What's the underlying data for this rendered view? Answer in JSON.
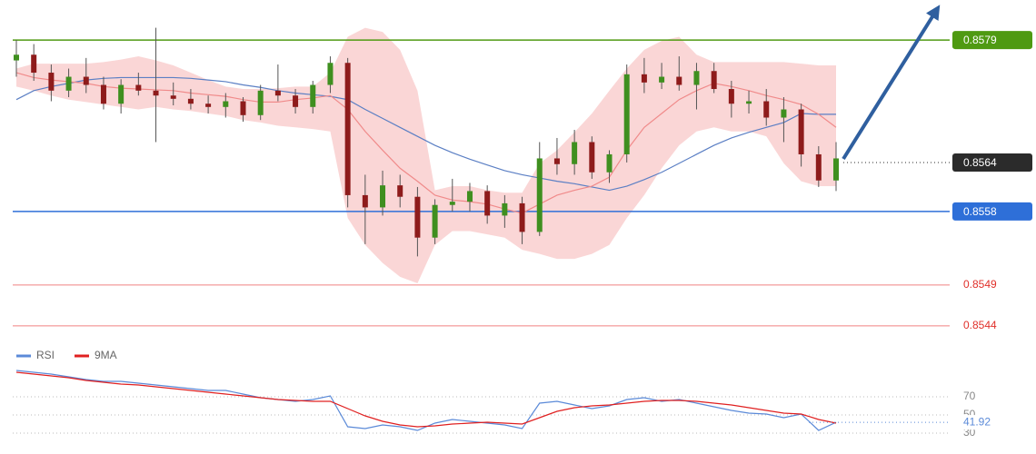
{
  "chart_data": [
    {
      "type": "candlestick",
      "ylim": [
        0.85422,
        0.85839
      ],
      "open": [
        0.85765,
        0.85772,
        0.8575,
        0.85728,
        0.85745,
        0.85735,
        0.85712,
        0.85735,
        0.85728,
        0.85722,
        0.85718,
        0.85712,
        0.85708,
        0.85715,
        0.85698,
        0.85728,
        0.85722,
        0.85708,
        0.85735,
        0.85762,
        0.856,
        0.85585,
        0.85612,
        0.85598,
        0.85548,
        0.85588,
        0.85592,
        0.85605,
        0.85575,
        0.8559,
        0.85555,
        0.85645,
        0.85638,
        0.85665,
        0.85628,
        0.8565,
        0.85748,
        0.85738,
        0.85745,
        0.85735,
        0.85752,
        0.8573,
        0.85712,
        0.85715,
        0.85695,
        0.85705,
        0.8565,
        0.85618
      ],
      "high": [
        0.8579,
        0.85785,
        0.8576,
        0.85755,
        0.85768,
        0.85745,
        0.85742,
        0.8575,
        0.85805,
        0.85738,
        0.8573,
        0.85722,
        0.85725,
        0.8572,
        0.85735,
        0.8576,
        0.8573,
        0.8574,
        0.8577,
        0.85768,
        0.85625,
        0.8563,
        0.85625,
        0.8561,
        0.85595,
        0.8562,
        0.85615,
        0.85612,
        0.856,
        0.85598,
        0.85665,
        0.8567,
        0.8568,
        0.85672,
        0.85655,
        0.8576,
        0.85768,
        0.85762,
        0.8577,
        0.85762,
        0.85762,
        0.8574,
        0.85728,
        0.8573,
        0.8572,
        0.85712,
        0.8566,
        0.85665
      ],
      "low": [
        0.85745,
        0.8574,
        0.85715,
        0.8572,
        0.85725,
        0.85705,
        0.857,
        0.85722,
        0.85665,
        0.8571,
        0.85705,
        0.857,
        0.85695,
        0.8569,
        0.85692,
        0.85715,
        0.857,
        0.857,
        0.85725,
        0.85585,
        0.8554,
        0.85575,
        0.85585,
        0.85525,
        0.8554,
        0.8558,
        0.8558,
        0.85565,
        0.8556,
        0.8554,
        0.8555,
        0.85625,
        0.85625,
        0.8562,
        0.85615,
        0.8564,
        0.85725,
        0.8573,
        0.85728,
        0.85705,
        0.85725,
        0.85695,
        0.857,
        0.85685,
        0.85665,
        0.85635,
        0.8561,
        0.85605
      ],
      "close": [
        0.85772,
        0.8575,
        0.85728,
        0.85745,
        0.85735,
        0.85712,
        0.85735,
        0.85728,
        0.85722,
        0.85718,
        0.85712,
        0.85708,
        0.85715,
        0.85698,
        0.85728,
        0.85722,
        0.85708,
        0.85735,
        0.85762,
        0.856,
        0.85585,
        0.85612,
        0.85598,
        0.85548,
        0.85588,
        0.85592,
        0.85605,
        0.85575,
        0.8559,
        0.85555,
        0.85645,
        0.85638,
        0.85665,
        0.85628,
        0.8565,
        0.85748,
        0.85738,
        0.85745,
        0.85735,
        0.85752,
        0.8573,
        0.85712,
        0.85715,
        0.85695,
        0.85705,
        0.8565,
        0.85618,
        0.85645
      ],
      "up_color": "#3f8f1f",
      "down_color": "#8e1b1b",
      "bands": {
        "color": "#f5b5b5",
        "upper": [
          0.85755,
          0.85761,
          0.85761,
          0.85761,
          0.85761,
          0.85763,
          0.85766,
          0.8577,
          0.85765,
          0.85759,
          0.8575,
          0.85741,
          0.85733,
          0.8573,
          0.8573,
          0.85731,
          0.85733,
          0.85733,
          0.8575,
          0.85794,
          0.85805,
          0.858,
          0.85778,
          0.85728,
          0.85606,
          0.85611,
          0.85611,
          0.85606,
          0.85603,
          0.85603,
          0.85639,
          0.85655,
          0.85677,
          0.857,
          0.85728,
          0.85755,
          0.85778,
          0.85789,
          0.85794,
          0.85772,
          0.85763,
          0.85763,
          0.85763,
          0.85763,
          0.85763,
          0.85761,
          0.85759,
          0.85759
        ],
        "lower": [
          0.85733,
          0.85728,
          0.85722,
          0.85717,
          0.85714,
          0.85711,
          0.85708,
          0.85705,
          0.85708,
          0.85705,
          0.85703,
          0.857,
          0.85697,
          0.85692,
          0.85689,
          0.85685,
          0.85683,
          0.85681,
          0.85678,
          0.85572,
          0.85539,
          0.85517,
          0.855,
          0.85492,
          0.85539,
          0.85556,
          0.85556,
          0.85552,
          0.85548,
          0.85533,
          0.85528,
          0.85522,
          0.85522,
          0.85528,
          0.85539,
          0.85572,
          0.856,
          0.85633,
          0.85661,
          0.85678,
          0.85683,
          0.85678,
          0.85678,
          0.85672,
          0.85639,
          0.85617,
          0.85611,
          0.85611
        ]
      },
      "moving_averages": [
        {
          "color": "#5b7fc4",
          "values": [
            0.85717,
            0.85728,
            0.85733,
            0.85737,
            0.85741,
            0.85743,
            0.85744,
            0.85744,
            0.85744,
            0.85744,
            0.85743,
            0.85741,
            0.85739,
            0.85735,
            0.85732,
            0.85728,
            0.85725,
            0.85723,
            0.85721,
            0.85717,
            0.85705,
            0.85694,
            0.85683,
            0.85672,
            0.85661,
            0.85652,
            0.85644,
            0.85637,
            0.8563,
            0.85625,
            0.85621,
            0.85617,
            0.85614,
            0.8561,
            0.85606,
            0.85611,
            0.85619,
            0.85628,
            0.85639,
            0.8565,
            0.85661,
            0.8567,
            0.85677,
            0.85683,
            0.85689,
            0.857,
            0.85699,
            0.85699
          ]
        },
        {
          "color": "#f08a8a",
          "values": [
            0.8575,
            0.85744,
            0.85741,
            0.85739,
            0.85737,
            0.85733,
            0.85731,
            0.8573,
            0.85729,
            0.85728,
            0.85725,
            0.85723,
            0.85721,
            0.85717,
            0.85714,
            0.85714,
            0.85717,
            0.85719,
            0.85722,
            0.85705,
            0.85678,
            0.85655,
            0.85633,
            0.85617,
            0.856,
            0.85594,
            0.85592,
            0.85589,
            0.85583,
            0.85578,
            0.85589,
            0.856,
            0.85606,
            0.85611,
            0.85622,
            0.85655,
            0.85683,
            0.857,
            0.85717,
            0.85728,
            0.85737,
            0.85733,
            0.85728,
            0.85722,
            0.85717,
            0.85711,
            0.85699,
            0.85683
          ]
        }
      ],
      "levels": [
        {
          "value": 0.8579,
          "color": "#4f9a12",
          "style": "tag"
        },
        {
          "value": 0.8564,
          "color": "#2b2b2b",
          "style": "current"
        },
        {
          "value": 0.8558,
          "color": "#2e6fd8",
          "style": "tag"
        },
        {
          "value": 0.8549,
          "color": "#f08080",
          "style": "text"
        },
        {
          "value": 0.8544,
          "color": "#f08080",
          "style": "text"
        }
      ]
    },
    {
      "type": "line",
      "ylim": [
        17,
        107
      ],
      "yticks": [
        70,
        50,
        30
      ],
      "grid": true,
      "series": [
        {
          "name": "RSI",
          "color": "#5b8ad8",
          "values": [
            99,
            97,
            95,
            92,
            89,
            87,
            87,
            85,
            83,
            81,
            79,
            77,
            77,
            73,
            69,
            67,
            65,
            67,
            71,
            37,
            35,
            39,
            37,
            33,
            41,
            45,
            43,
            41,
            39,
            35,
            63,
            65,
            61,
            57,
            60,
            67,
            69,
            65,
            67,
            63,
            59,
            55,
            52,
            51,
            47,
            51,
            33,
            41.92
          ]
        },
        {
          "name": "9MA",
          "color": "#e02020",
          "values": [
            97,
            95,
            93,
            91,
            88,
            86,
            84,
            83,
            81,
            79,
            77,
            75,
            73,
            71,
            69,
            67,
            66,
            65,
            65,
            57,
            49,
            43,
            39,
            37,
            38,
            40,
            41,
            42,
            41,
            40,
            47,
            54,
            58,
            60,
            61,
            63,
            65,
            66,
            66,
            65,
            63,
            61,
            58,
            55,
            52,
            51,
            45,
            41
          ]
        }
      ]
    }
  ]
}
